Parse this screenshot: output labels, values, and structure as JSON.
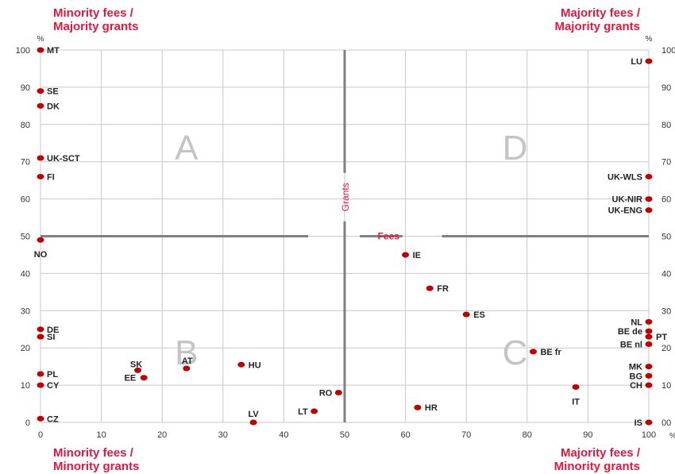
{
  "chart_data": {
    "type": "scatter",
    "corner_labels": {
      "top_left": [
        "Minority fees /",
        "Majority grants"
      ],
      "top_right": [
        "Majority fees /",
        "Majority grants"
      ],
      "bottom_left": [
        "Minority fees /",
        "Minority grants"
      ],
      "bottom_right": [
        "Majority fees /",
        "Minority grants"
      ]
    },
    "quadrant_letters": [
      "A",
      "B",
      "C",
      "D"
    ],
    "divider_labels": {
      "vertical": "Grants",
      "horizontal": "Fees"
    },
    "axis_units": {
      "y_left": "%",
      "y_right": "%",
      "x": "%"
    },
    "x_ticks": [
      0,
      10,
      20,
      30,
      40,
      50,
      60,
      70,
      80,
      90,
      100
    ],
    "y_ticks": [
      0,
      10,
      20,
      30,
      40,
      50,
      60,
      70,
      80,
      90,
      100
    ],
    "y_right_tick_labels": [
      "00",
      "10",
      "20",
      "30",
      "40",
      "50",
      "60",
      "70",
      "80",
      "90",
      "100"
    ],
    "xlim": [
      0,
      100
    ],
    "ylim": [
      0,
      100
    ],
    "grid": true,
    "colors": {
      "accent": "#e3173d",
      "point": "#c00000",
      "divider": "#808080",
      "grid": "#c8c8c8"
    },
    "points": [
      {
        "label": "MT",
        "x": 0,
        "y": 100
      },
      {
        "label": "SE",
        "x": 0,
        "y": 89
      },
      {
        "label": "DK",
        "x": 0,
        "y": 85
      },
      {
        "label": "UK-SCT",
        "x": 0,
        "y": 71
      },
      {
        "label": "FI",
        "x": 0,
        "y": 66
      },
      {
        "label": "NO",
        "x": 0,
        "y": 49
      },
      {
        "label": "DE",
        "x": 0,
        "y": 25
      },
      {
        "label": "SI",
        "x": 0,
        "y": 23
      },
      {
        "label": "PL",
        "x": 0,
        "y": 13
      },
      {
        "label": "CY",
        "x": 0,
        "y": 10
      },
      {
        "label": "CZ",
        "x": 0,
        "y": 1
      },
      {
        "label": "SK",
        "x": 16,
        "y": 14
      },
      {
        "label": "EE",
        "x": 17,
        "y": 12
      },
      {
        "label": "AT",
        "x": 24,
        "y": 14.5
      },
      {
        "label": "HU",
        "x": 33,
        "y": 15.5
      },
      {
        "label": "LV",
        "x": 35,
        "y": 0
      },
      {
        "label": "LT",
        "x": 45,
        "y": 3
      },
      {
        "label": "RO",
        "x": 49,
        "y": 8
      },
      {
        "label": "HR",
        "x": 62,
        "y": 4
      },
      {
        "label": "IE",
        "x": 60,
        "y": 45
      },
      {
        "label": "FR",
        "x": 64,
        "y": 36
      },
      {
        "label": "ES",
        "x": 70,
        "y": 29
      },
      {
        "label": "BE fr",
        "x": 81,
        "y": 19
      },
      {
        "label": "IT",
        "x": 88,
        "y": 9.5
      },
      {
        "label": "LU",
        "x": 100,
        "y": 97
      },
      {
        "label": "UK-WLS",
        "x": 100,
        "y": 66
      },
      {
        "label": "UK-NIR",
        "x": 100,
        "y": 60
      },
      {
        "label": "UK-ENG",
        "x": 100,
        "y": 57
      },
      {
        "label": "NL",
        "x": 100,
        "y": 27
      },
      {
        "label": "BE de",
        "x": 100,
        "y": 24.5
      },
      {
        "label": "PT",
        "x": 100,
        "y": 23
      },
      {
        "label": "BE nl",
        "x": 100,
        "y": 21
      },
      {
        "label": "MK",
        "x": 100,
        "y": 15
      },
      {
        "label": "BG",
        "x": 100,
        "y": 12.5
      },
      {
        "label": "CH",
        "x": 100,
        "y": 10
      },
      {
        "label": "IS",
        "x": 100,
        "y": 0
      }
    ]
  }
}
